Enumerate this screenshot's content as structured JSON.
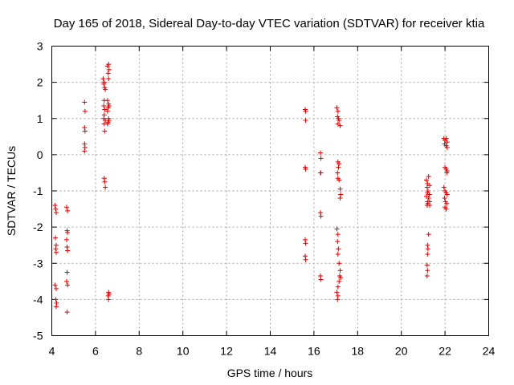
{
  "chart_data": {
    "type": "scatter",
    "title": "Day 165 of 2018, Sidereal Day-to-day VTEC variation (SDTVAR) for receiver ktia",
    "xlabel": "GPS time / hours",
    "ylabel": "SDTVAR / TECUs",
    "xlim": [
      4,
      24
    ],
    "ylim": [
      -5,
      3
    ],
    "xticks": [
      "4",
      "6",
      "8",
      "10",
      "12",
      "14",
      "16",
      "18",
      "20",
      "22",
      "24"
    ],
    "yticks": [
      "-5",
      "-4",
      "-3",
      "-2",
      "-1",
      "0",
      "1",
      "2",
      "3"
    ],
    "grid": true,
    "marker": "plus",
    "color": "#e00000",
    "series": [
      {
        "name": "SDTVAR",
        "points": [
          [
            4.15,
            -1.4
          ],
          [
            4.18,
            -1.5
          ],
          [
            4.2,
            -1.6
          ],
          [
            4.17,
            -2.3
          ],
          [
            4.2,
            -2.5
          ],
          [
            4.18,
            -2.6
          ],
          [
            4.2,
            -2.7
          ],
          [
            4.15,
            -3.6
          ],
          [
            4.2,
            -3.7
          ],
          [
            4.18,
            -4.0
          ],
          [
            4.22,
            -4.1
          ],
          [
            4.2,
            -4.2
          ],
          [
            4.68,
            -1.45
          ],
          [
            4.72,
            -1.55
          ],
          [
            4.7,
            -2.1
          ],
          [
            4.72,
            -2.15
          ],
          [
            4.68,
            -2.35
          ],
          [
            4.7,
            -2.55
          ],
          [
            4.72,
            -2.65
          ],
          [
            4.7,
            -3.25
          ],
          [
            4.68,
            -3.5
          ],
          [
            4.72,
            -3.6
          ],
          [
            4.7,
            -4.35
          ],
          [
            5.5,
            1.45
          ],
          [
            5.52,
            1.2
          ],
          [
            5.5,
            0.75
          ],
          [
            5.52,
            0.65
          ],
          [
            5.5,
            0.3
          ],
          [
            5.52,
            0.2
          ],
          [
            5.5,
            0.1
          ],
          [
            6.35,
            2.1
          ],
          [
            6.4,
            2.0
          ],
          [
            6.38,
            1.95
          ],
          [
            6.42,
            1.85
          ],
          [
            6.45,
            1.8
          ],
          [
            6.4,
            1.5
          ],
          [
            6.38,
            1.35
          ],
          [
            6.42,
            1.25
          ],
          [
            6.4,
            1.1
          ],
          [
            6.38,
            1.0
          ],
          [
            6.45,
            0.95
          ],
          [
            6.4,
            0.85
          ],
          [
            6.42,
            0.65
          ],
          [
            6.4,
            -0.65
          ],
          [
            6.42,
            -0.75
          ],
          [
            6.45,
            -0.9
          ],
          [
            6.55,
            2.45
          ],
          [
            6.6,
            2.5
          ],
          [
            6.62,
            2.35
          ],
          [
            6.58,
            2.25
          ],
          [
            6.6,
            2.1
          ],
          [
            6.55,
            1.5
          ],
          [
            6.6,
            1.4
          ],
          [
            6.62,
            1.35
          ],
          [
            6.58,
            1.3
          ],
          [
            6.55,
            1.2
          ],
          [
            6.6,
            1.0
          ],
          [
            6.62,
            0.95
          ],
          [
            6.58,
            0.9
          ],
          [
            6.55,
            0.85
          ],
          [
            6.6,
            -3.8
          ],
          [
            6.62,
            -3.85
          ],
          [
            6.58,
            -3.9
          ],
          [
            6.6,
            -4.0
          ],
          [
            15.6,
            1.25
          ],
          [
            15.62,
            1.2
          ],
          [
            15.62,
            0.95
          ],
          [
            15.6,
            -0.35
          ],
          [
            15.62,
            -0.4
          ],
          [
            15.6,
            -2.35
          ],
          [
            15.62,
            -2.45
          ],
          [
            15.6,
            -2.8
          ],
          [
            15.62,
            -2.9
          ],
          [
            16.3,
            0.05
          ],
          [
            16.32,
            -0.1
          ],
          [
            16.3,
            -0.5
          ],
          [
            16.32,
            -0.5
          ],
          [
            16.3,
            -1.6
          ],
          [
            16.32,
            -1.7
          ],
          [
            16.3,
            -3.35
          ],
          [
            16.32,
            -3.45
          ],
          [
            17.05,
            1.3
          ],
          [
            17.1,
            1.2
          ],
          [
            17.08,
            1.05
          ],
          [
            17.12,
            1.0
          ],
          [
            17.15,
            0.95
          ],
          [
            17.1,
            0.85
          ],
          [
            17.2,
            0.8
          ],
          [
            17.1,
            -0.2
          ],
          [
            17.15,
            -0.25
          ],
          [
            17.12,
            -0.35
          ],
          [
            17.08,
            -0.5
          ],
          [
            17.1,
            -0.65
          ],
          [
            17.15,
            -0.7
          ],
          [
            17.2,
            -0.95
          ],
          [
            17.22,
            -1.1
          ],
          [
            17.2,
            -1.2
          ],
          [
            17.05,
            -2.05
          ],
          [
            17.1,
            -2.2
          ],
          [
            17.08,
            -2.4
          ],
          [
            17.12,
            -2.6
          ],
          [
            17.1,
            -2.75
          ],
          [
            17.15,
            -3.0
          ],
          [
            17.2,
            -3.2
          ],
          [
            17.18,
            -3.35
          ],
          [
            17.22,
            -3.4
          ],
          [
            17.15,
            -3.5
          ],
          [
            17.1,
            -3.65
          ],
          [
            17.05,
            -3.8
          ],
          [
            17.1,
            -3.9
          ],
          [
            17.08,
            -4.0
          ],
          [
            21.15,
            -0.7
          ],
          [
            21.2,
            -0.8
          ],
          [
            21.18,
            -0.9
          ],
          [
            21.22,
            -1.0
          ],
          [
            21.2,
            -1.05
          ],
          [
            21.15,
            -1.15
          ],
          [
            21.25,
            -1.2
          ],
          [
            21.2,
            -1.3
          ],
          [
            21.22,
            -1.35
          ],
          [
            21.18,
            -1.4
          ],
          [
            21.25,
            -0.6
          ],
          [
            21.3,
            -0.85
          ],
          [
            21.28,
            -1.1
          ],
          [
            21.3,
            -1.3
          ],
          [
            21.3,
            -1.4
          ],
          [
            21.25,
            -2.2
          ],
          [
            21.2,
            -2.5
          ],
          [
            21.22,
            -2.6
          ],
          [
            21.2,
            -2.75
          ],
          [
            21.18,
            -3.05
          ],
          [
            21.2,
            -3.2
          ],
          [
            21.18,
            -3.35
          ],
          [
            21.95,
            0.45
          ],
          [
            22.0,
            0.4
          ],
          [
            22.05,
            0.45
          ],
          [
            22.1,
            0.35
          ],
          [
            21.98,
            0.3
          ],
          [
            22.05,
            0.25
          ],
          [
            22.1,
            0.2
          ],
          [
            22.0,
            -0.35
          ],
          [
            22.05,
            -0.4
          ],
          [
            22.08,
            -0.5
          ],
          [
            22.1,
            -0.45
          ],
          [
            21.95,
            -0.9
          ],
          [
            22.0,
            -1.0
          ],
          [
            22.05,
            -1.05
          ],
          [
            22.1,
            -1.1
          ],
          [
            21.98,
            -1.2
          ],
          [
            22.02,
            -1.3
          ],
          [
            22.08,
            -1.35
          ],
          [
            22.0,
            -1.45
          ],
          [
            22.05,
            -1.5
          ]
        ]
      }
    ]
  }
}
